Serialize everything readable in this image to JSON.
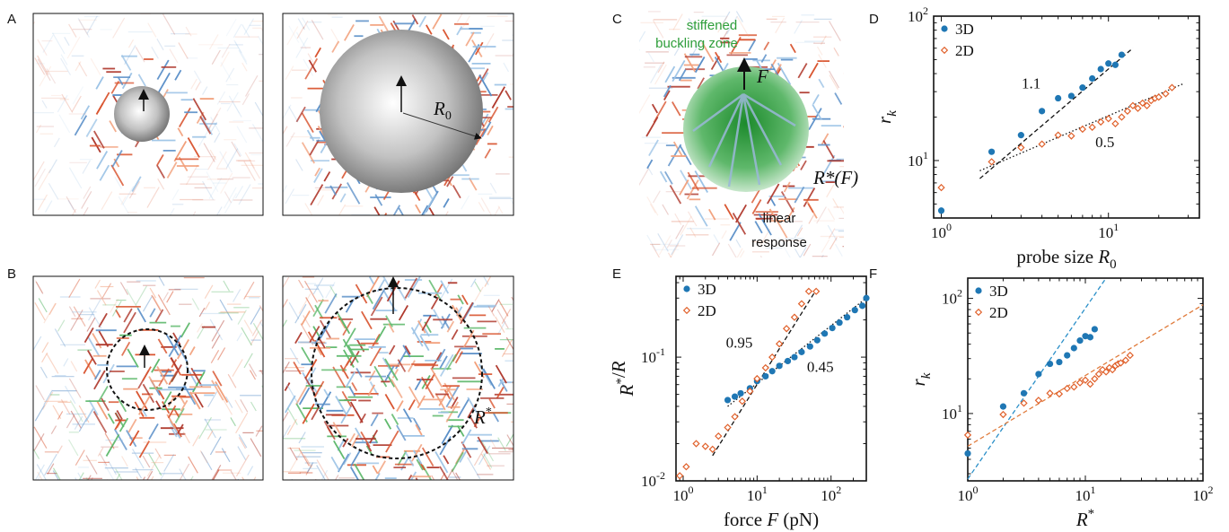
{
  "panel_labels": {
    "a": "A",
    "b": "B",
    "c": "C",
    "d": "D",
    "e": "E",
    "f": "F"
  },
  "colors": {
    "series_3d": "#1f77b4",
    "series_2d": "#e0602a",
    "fit_f_3d": "#2a8fc8",
    "fit_f_2d": "#e07a3a",
    "green_zone": "#2e9e3a",
    "network_red": "#d9542f",
    "network_blue": "#5a8fc8",
    "network_green": "#5cb86a"
  },
  "schematic": {
    "a_radius_label": "R",
    "a_radius_sub": "0",
    "b_radius_label": "R",
    "b_radius_sup": "*",
    "c_zone_line1": "stiffened",
    "c_zone_line2": "buckling zone",
    "c_force_label": "F",
    "c_radius_label": "R*(F)",
    "c_linear_line1": "linear",
    "c_linear_line2": "response"
  },
  "chart_data": [
    {
      "panel": "D",
      "type": "scatter",
      "xscale": "log",
      "yscale": "log",
      "xlim": [
        0.9,
        35
      ],
      "ylim": [
        4,
        100
      ],
      "xticks": [
        1,
        10
      ],
      "xtick_labels": [
        "10^0",
        "10^1"
      ],
      "yticks": [
        10,
        100
      ],
      "ytick_labels": [
        "10^1",
        "10^2"
      ],
      "xlabel": "probe size R0",
      "ylabel": "r_k",
      "legend_position": "top-left",
      "series": [
        {
          "name": "3D",
          "marker": "dot",
          "x": [
            1,
            2,
            3,
            4,
            5,
            6,
            7,
            8,
            9,
            10,
            11,
            12
          ],
          "y": [
            4.5,
            11.5,
            15,
            22,
            27,
            28,
            32,
            37,
            43,
            47,
            46,
            54
          ]
        },
        {
          "name": "2D",
          "marker": "diamond",
          "x": [
            1,
            2,
            3,
            4,
            5,
            6,
            7,
            8,
            9,
            10,
            11,
            12,
            13,
            14,
            15,
            16,
            17,
            18,
            19,
            20,
            22,
            24
          ],
          "y": [
            6.5,
            9.8,
            12.3,
            13,
            15,
            14.8,
            16.5,
            17,
            18.5,
            19.5,
            18,
            20,
            22,
            24,
            23,
            25,
            24,
            26,
            27,
            27.5,
            29,
            32
          ]
        }
      ],
      "fits": [
        {
          "x": [
            1.7,
            14
          ],
          "y": [
            7.5,
            60
          ],
          "style": "dashed",
          "annotation": "1.1"
        },
        {
          "x": [
            1.7,
            28
          ],
          "y": [
            8.5,
            34
          ],
          "style": "dotted",
          "annotation": "0.5"
        }
      ]
    },
    {
      "panel": "E",
      "type": "scatter",
      "xscale": "log",
      "yscale": "log",
      "xlim": [
        0.8,
        300
      ],
      "ylim": [
        0.01,
        0.45
      ],
      "xticks": [
        1,
        10,
        100
      ],
      "xtick_labels": [
        "10^0",
        "10^1",
        "10^2"
      ],
      "yticks": [
        0.01,
        0.1
      ],
      "ytick_labels": [
        "10^-2",
        "10^-1"
      ],
      "xlabel": "force F (pN)",
      "ylabel": "R*/R",
      "legend_position": "top-left",
      "series": [
        {
          "name": "3D",
          "marker": "dot",
          "x": [
            4,
            5,
            6,
            8,
            10,
            13,
            16,
            20,
            26,
            32,
            40,
            52,
            65,
            82,
            104,
            130,
            165,
            210,
            265,
            300
          ],
          "y": [
            0.045,
            0.048,
            0.051,
            0.056,
            0.064,
            0.07,
            0.077,
            0.085,
            0.093,
            0.1,
            0.11,
            0.122,
            0.137,
            0.155,
            0.172,
            0.19,
            0.21,
            0.24,
            0.26,
            0.3
          ]
        },
        {
          "name": "2D",
          "marker": "diamond",
          "x": [
            0.9,
            1.1,
            1.5,
            2,
            2.5,
            3,
            4,
            5,
            6.3,
            8,
            10,
            13,
            16,
            20,
            25,
            32,
            40,
            50,
            63
          ],
          "y": [
            0.011,
            0.013,
            0.02,
            0.019,
            0.018,
            0.023,
            0.027,
            0.033,
            0.044,
            0.053,
            0.067,
            0.082,
            0.1,
            0.128,
            0.17,
            0.21,
            0.27,
            0.34,
            0.34
          ]
        }
      ],
      "fits": [
        {
          "x": [
            2.5,
            63
          ],
          "y": [
            0.016,
            0.35
          ],
          "style": "dashed",
          "annotation": "0.95"
        },
        {
          "x": [
            4,
            300
          ],
          "y": [
            0.04,
            0.3
          ],
          "style": "dotted",
          "annotation": "0.45"
        }
      ]
    },
    {
      "panel": "F",
      "type": "scatter",
      "xscale": "log",
      "yscale": "log",
      "xlim": [
        1,
        100
      ],
      "ylim": [
        2.6,
        150
      ],
      "xticks": [
        1,
        10,
        100
      ],
      "xtick_labels": [
        "10^0",
        "10^1",
        "10^2"
      ],
      "yticks": [
        10,
        100
      ],
      "ytick_labels": [
        "10^1",
        "10^2"
      ],
      "xlabel": "R*",
      "ylabel": "r_k",
      "legend_position": "top-left",
      "series": [
        {
          "name": "3D",
          "marker": "dot",
          "x": [
            1,
            2,
            3,
            4,
            5,
            6,
            7,
            8,
            9,
            10,
            11,
            12
          ],
          "y": [
            4.5,
            11.5,
            15,
            22,
            27,
            28,
            32,
            37,
            43,
            47,
            46,
            54
          ]
        },
        {
          "name": "2D",
          "marker": "diamond",
          "x": [
            1,
            2,
            3,
            4,
            5,
            6,
            7,
            8,
            9,
            10,
            11,
            12,
            13,
            14,
            15,
            16,
            17,
            18,
            19,
            20,
            22,
            24
          ],
          "y": [
            6.5,
            9.8,
            12.3,
            13,
            15,
            14.8,
            16.5,
            17,
            18.5,
            19.5,
            18,
            20,
            22,
            24,
            23,
            25,
            24,
            26,
            27,
            27.5,
            29,
            32
          ]
        }
      ],
      "fits": [
        {
          "x": [
            1,
            15
          ],
          "y": [
            2.7,
            150
          ],
          "style": "dashed",
          "color": "3D"
        },
        {
          "x": [
            1,
            100
          ],
          "y": [
            5.2,
            88
          ],
          "style": "dashed",
          "color": "2D"
        }
      ]
    }
  ]
}
